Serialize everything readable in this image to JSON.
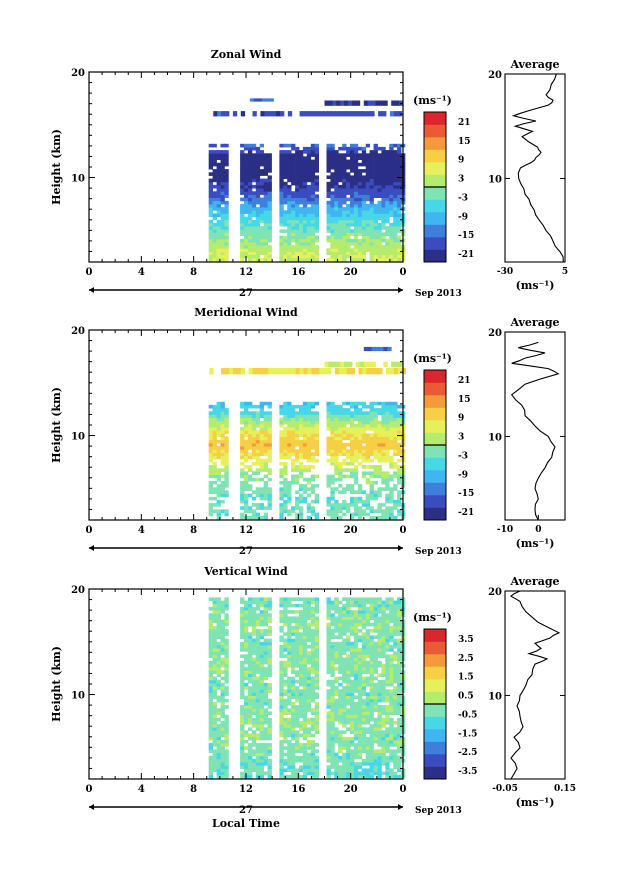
{
  "figure": {
    "x_axis_title": "Local Time",
    "date_label": "27",
    "month_label": "Sep 2013",
    "height_axis_title": "Height (km)",
    "units_label": "(ms⁻¹)",
    "profile_title": "Average"
  },
  "colorscale": [
    "#2b2f86",
    "#3b4cc0",
    "#3f7fdc",
    "#3fb6f2",
    "#47d8e8",
    "#7fe3b4",
    "#b5ec6e",
    "#e6f05a",
    "#f6cf45",
    "#f59a3a",
    "#ea5a34",
    "#d9272d"
  ],
  "chart_data": [
    {
      "type": "heatmap",
      "title": "Zonal Wind",
      "ylabel": "Height (km)",
      "xlim": [
        0,
        24
      ],
      "ylim": [
        2,
        20
      ],
      "x_ticks": [
        "0",
        "4",
        "8",
        "12",
        "16",
        "20",
        "0"
      ],
      "y_ticks": [
        "10",
        "20"
      ],
      "colorbar": {
        "ticks": [
          "21",
          "15",
          "9",
          "3",
          "-3",
          "-9",
          "-15",
          "-21"
        ],
        "range": [
          -24,
          24
        ]
      },
      "data_window_hours": [
        9,
        24
      ],
      "gaps_hours": [
        11.0,
        14.1,
        17.8
      ],
      "height_profile_km": [
        2.5,
        4,
        5,
        6,
        7,
        8,
        9,
        10,
        11,
        12,
        13,
        14,
        15,
        16,
        17,
        18,
        19
      ],
      "height_profile_val": [
        4,
        0,
        -3,
        -6,
        -10,
        -16,
        -20,
        -22,
        -23,
        -22,
        -15,
        null,
        null,
        -18,
        null,
        null,
        null
      ],
      "upper_patches": [
        {
          "hours": [
            9.2,
            24
          ],
          "km": [
            15.8,
            16.3
          ],
          "value": -18
        },
        {
          "hours": [
            18,
            24
          ],
          "km": [
            16.8,
            17.3
          ],
          "value": -21
        },
        {
          "hours": [
            12,
            14
          ],
          "km": [
            17.2,
            17.5
          ],
          "value": -15
        }
      ],
      "profile": {
        "xlim": [
          -30,
          5
        ],
        "x_ticks": [
          "-30",
          "5"
        ],
        "height_km": [
          2,
          3,
          4,
          5,
          6,
          7,
          8,
          9,
          10,
          11,
          11.5,
          12,
          12.5,
          13,
          14,
          14.5,
          15,
          15.5,
          16,
          16.5,
          17,
          17.5,
          18,
          19,
          20
        ],
        "values": [
          4,
          2,
          -2,
          -6,
          -10,
          -13,
          -16,
          -19,
          -22,
          -21,
          -15,
          -12,
          -9,
          -11,
          -20,
          -14,
          -24,
          -12,
          -25,
          -16,
          -5,
          -2,
          -6,
          -3,
          0
        ]
      }
    },
    {
      "type": "heatmap",
      "title": "Meridional Wind",
      "ylabel": "Height (km)",
      "xlim": [
        0,
        24
      ],
      "ylim": [
        2,
        20
      ],
      "x_ticks": [
        "0",
        "4",
        "8",
        "12",
        "16",
        "20",
        "0"
      ],
      "y_ticks": [
        "10",
        "20"
      ],
      "colorbar": {
        "ticks": [
          "21",
          "15",
          "9",
          "3",
          "-3",
          "-9",
          "-15",
          "-21"
        ],
        "range": [
          -24,
          24
        ]
      },
      "data_window_hours": [
        9,
        24
      ],
      "gaps_hours": [
        11.0,
        14.1,
        17.8
      ],
      "height_profile_km": [
        2.5,
        4,
        5,
        6,
        7,
        8,
        9,
        10,
        11,
        12,
        13,
        14,
        15,
        16,
        17,
        18,
        19
      ],
      "height_profile_val": [
        -3,
        -4,
        -2,
        -1,
        4,
        8,
        11,
        8,
        2,
        -5,
        -8,
        null,
        null,
        -3,
        null,
        null,
        null
      ],
      "upper_patches": [
        {
          "hours": [
            9.2,
            24
          ],
          "km": [
            15.8,
            16.4
          ],
          "value": 8
        },
        {
          "hours": [
            18,
            24
          ],
          "km": [
            16.5,
            17.0
          ],
          "value": 3
        },
        {
          "hours": [
            21,
            23
          ],
          "km": [
            18.0,
            18.4
          ],
          "value": -15
        }
      ],
      "profile": {
        "xlim": [
          -10,
          8
        ],
        "x_ticks": [
          "-10",
          "0"
        ],
        "height_km": [
          2,
          3,
          4,
          5,
          6,
          7,
          8,
          9,
          10,
          11,
          12,
          13,
          14,
          15,
          16,
          16.5,
          17,
          17.5,
          18,
          18.5,
          19
        ],
        "values": [
          0,
          -1,
          0,
          -1,
          0,
          2,
          4,
          5,
          3,
          -1,
          -4,
          -5,
          -8,
          -4,
          6,
          3,
          -8,
          -4,
          2,
          -6,
          0
        ]
      }
    },
    {
      "type": "heatmap",
      "title": "Vertical Wind",
      "ylabel": "Height (km)",
      "xlim": [
        0,
        24
      ],
      "ylim": [
        2,
        20
      ],
      "x_ticks": [
        "0",
        "4",
        "8",
        "12",
        "16",
        "20",
        "0"
      ],
      "y_ticks": [
        "10",
        "20"
      ],
      "xlabel": "Local Time",
      "colorbar": {
        "ticks": [
          "3.5",
          "2.5",
          "1.5",
          "0.5",
          "-0.5",
          "-1.5",
          "-2.5",
          "-3.5"
        ],
        "range": [
          -4,
          4
        ]
      },
      "data_window_hours": [
        9,
        24
      ],
      "gaps_hours": [
        11.0,
        14.1,
        17.8
      ],
      "height_profile_km": [
        2.5,
        4,
        5,
        6,
        7,
        8,
        9,
        10,
        11,
        12,
        13,
        14,
        15,
        16,
        17,
        18,
        19
      ],
      "height_profile_val": [
        -0.6,
        -0.4,
        -0.3,
        -0.3,
        -0.2,
        -0.2,
        -0.3,
        -0.3,
        -0.3,
        -0.2,
        -0.2,
        -0.3,
        -0.3,
        -0.2,
        -0.2,
        -0.3,
        -0.4
      ],
      "upper_patches": [],
      "profile": {
        "xlim": [
          -0.05,
          0.15
        ],
        "x_ticks": [
          "-0.05",
          "0.15"
        ],
        "height_km": [
          2,
          3,
          4,
          5,
          6,
          7,
          8,
          9,
          10,
          11,
          12,
          13,
          13.5,
          14,
          14.5,
          15,
          15.5,
          16,
          17,
          18,
          19,
          19.5,
          20
        ],
        "values": [
          -0.03,
          -0.01,
          -0.03,
          0.0,
          -0.02,
          0.01,
          0.0,
          -0.01,
          0.0,
          0.02,
          0.04,
          0.05,
          0.09,
          0.03,
          0.07,
          0.05,
          0.1,
          0.13,
          0.06,
          0.02,
          0.0,
          -0.03,
          0.0
        ]
      }
    }
  ]
}
